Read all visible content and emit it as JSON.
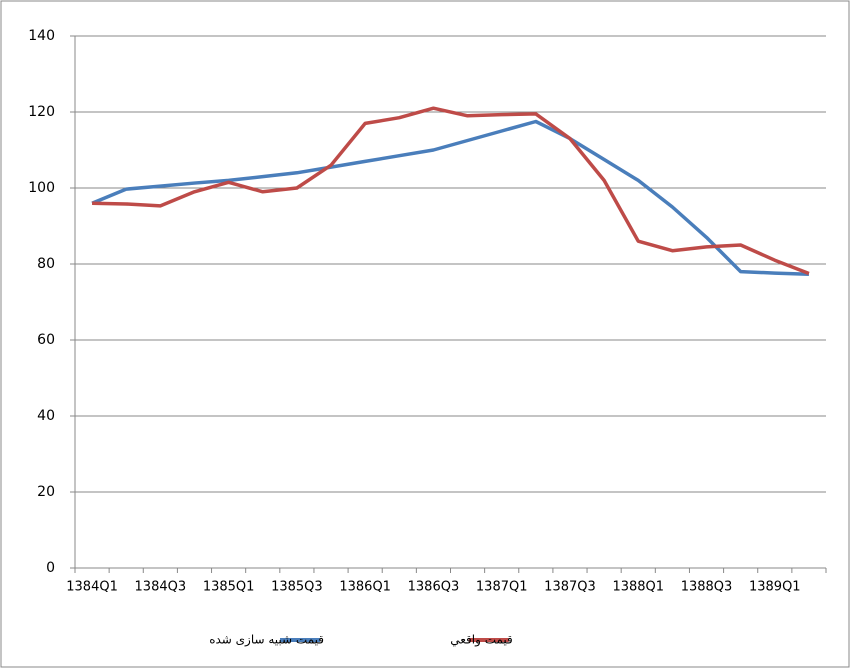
{
  "chart_data": {
    "type": "line",
    "categories": [
      "1384Q1",
      null,
      "1384Q3",
      null,
      "1385Q1",
      null,
      "1385Q3",
      null,
      "1386Q1",
      null,
      "1386Q3",
      null,
      "1387Q1",
      null,
      "1387Q3",
      null,
      "1388Q1",
      null,
      "1388Q3",
      null,
      "1389Q1",
      null
    ],
    "series": [
      {
        "name": "قیمت شبیه سازی شده",
        "color": "#4a7ebb",
        "values": [
          96,
          99.7,
          100.5,
          101.3,
          102,
          103,
          104,
          105.5,
          107,
          108.5,
          110,
          112.5,
          115,
          117.5,
          113,
          107.5,
          102,
          95,
          87,
          78,
          77.6,
          77.3
        ]
      },
      {
        "name": "قیمت واقعي",
        "color": "#be4b48",
        "values": [
          96,
          95.8,
          95.3,
          99,
          101.5,
          99,
          100,
          106,
          117,
          118.5,
          121,
          119,
          119.3,
          119.5,
          113,
          102,
          86,
          83.5,
          84.5,
          85,
          81,
          77.5
        ]
      }
    ],
    "ylim": [
      0,
      140
    ],
    "yticks": [
      0,
      20,
      40,
      60,
      80,
      100,
      120,
      140
    ],
    "grid": true,
    "legend": "bottom"
  }
}
